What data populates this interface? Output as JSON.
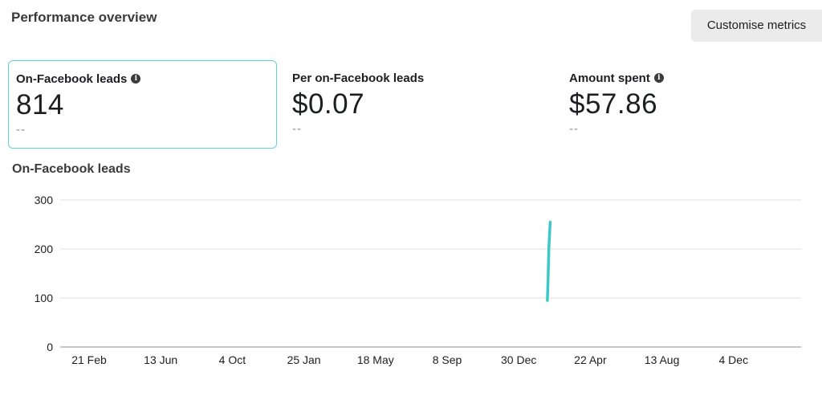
{
  "header": {
    "title": "Performance overview",
    "customise_label": "Customise metrics"
  },
  "metrics": [
    {
      "label": "On-Facebook leads",
      "value": "814",
      "compare": "--",
      "has_info": true,
      "selected": true
    },
    {
      "label": "Per on-Facebook leads",
      "value": "$0.07",
      "compare": "--",
      "has_info": false,
      "selected": false
    },
    {
      "label": "Amount spent",
      "value": "$57.86",
      "compare": "--",
      "has_info": true,
      "selected": false
    }
  ],
  "icons": {
    "info": "info-icon"
  },
  "colors": {
    "accent": "#3bc8c8",
    "card_border": "#5fd4d8",
    "grid": "#dddfe2"
  },
  "chart_data": {
    "type": "line",
    "title": "On-Facebook leads",
    "xlabel": "",
    "ylabel": "",
    "ylim": [
      0,
      300
    ],
    "y_ticks": [
      0,
      100,
      200,
      300
    ],
    "x_tick_labels": [
      "21 Feb",
      "13 Jun",
      "4 Oct",
      "25 Jan",
      "18 May",
      "8 Sep",
      "30 Dec",
      "22 Apr",
      "13 Aug",
      "4 Dec"
    ],
    "grid": true,
    "series": [
      {
        "name": "",
        "color": "#3bc8c8",
        "x_index": [
          6.4,
          6.41,
          6.42,
          6.43,
          6.44
        ],
        "values": [
          95,
          140,
          200,
          230,
          255
        ]
      }
    ]
  }
}
